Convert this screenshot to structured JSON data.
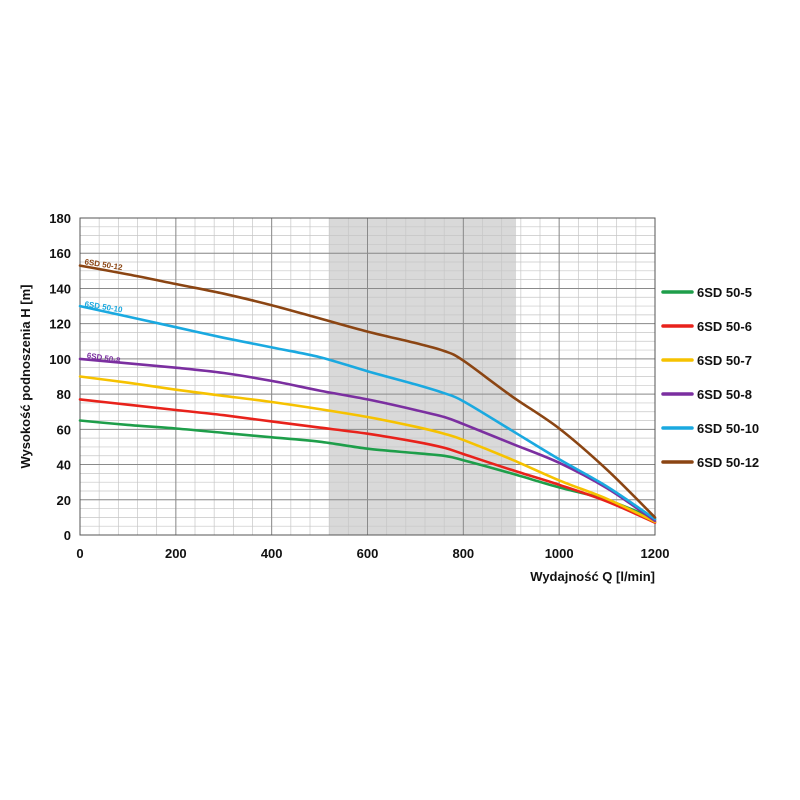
{
  "chart_data": {
    "type": "line",
    "xlabel": "Wydajność Q [l/min]",
    "ylabel": "Wysokość podnoszenia H [m]",
    "xlim": [
      0,
      1200
    ],
    "ylim": [
      0,
      180
    ],
    "x_ticks": [
      0,
      200,
      400,
      600,
      800,
      1000,
      1200
    ],
    "y_ticks": [
      0,
      20,
      40,
      60,
      80,
      100,
      120,
      140,
      160,
      180
    ],
    "grid": true,
    "legend_position": "right",
    "shaded_range": [
      520,
      910
    ],
    "shaded_color": "#d9d9d9",
    "series": [
      {
        "name": "6SD 50-5",
        "color": "#1e9e4a",
        "x": [
          0,
          100,
          200,
          300,
          400,
          500,
          600,
          700,
          760,
          800,
          900,
          1000,
          1100,
          1200
        ],
        "y": [
          65,
          62.5,
          60.5,
          58,
          55.5,
          53,
          49,
          46.5,
          45,
          42.5,
          35,
          27,
          20,
          9
        ]
      },
      {
        "name": "6SD 50-6",
        "color": "#e8221b",
        "x": [
          0,
          100,
          200,
          300,
          400,
          500,
          600,
          700,
          760,
          800,
          900,
          1000,
          1100,
          1200
        ],
        "y": [
          77,
          74,
          71,
          68,
          64.5,
          61,
          57.5,
          53,
          49.5,
          46,
          37,
          28.5,
          19,
          7
        ]
      },
      {
        "name": "6SD 50-7",
        "color": "#f6c200",
        "x": [
          0,
          100,
          200,
          300,
          400,
          500,
          600,
          700,
          760,
          800,
          900,
          1000,
          1100,
          1200
        ],
        "y": [
          90,
          86.5,
          82.5,
          79,
          75.5,
          71.5,
          67,
          61.5,
          57.5,
          54,
          43,
          31,
          20.5,
          7.5
        ]
      },
      {
        "name": "6SD 50-8",
        "color": "#7b2fa0",
        "x": [
          0,
          100,
          200,
          300,
          400,
          500,
          600,
          700,
          760,
          800,
          900,
          1000,
          1100,
          1200
        ],
        "y": [
          100,
          97.5,
          95,
          92,
          87.5,
          82,
          77,
          71,
          67,
          63,
          52,
          41,
          26.5,
          8
        ]
      },
      {
        "name": "6SD 50-10",
        "color": "#1aa9e0",
        "x": [
          0,
          100,
          200,
          300,
          400,
          500,
          600,
          700,
          760,
          800,
          900,
          1000,
          1100,
          1200
        ],
        "y": [
          130,
          124,
          118,
          112,
          106.5,
          101,
          93,
          85.5,
          80.5,
          76,
          59.5,
          43,
          27.5,
          9
        ]
      },
      {
        "name": "6SD 50-12",
        "color": "#8b4513",
        "x": [
          0,
          100,
          200,
          300,
          400,
          500,
          600,
          700,
          760,
          800,
          900,
          1000,
          1100,
          1200
        ],
        "y": [
          153,
          148,
          142.5,
          137,
          130.5,
          123,
          115.5,
          109,
          104.5,
          99,
          79,
          60.5,
          37,
          10
        ]
      }
    ],
    "curve_labels": [
      {
        "text": "6SD 50-12",
        "series": "6SD 50-12",
        "x": 48,
        "y": 151.5
      },
      {
        "text": "6SD 50-10",
        "series": "6SD 50-10",
        "x": 48,
        "y": 127.5
      },
      {
        "text": "6SD 50-8",
        "series": "6SD 50-8",
        "x": 48,
        "y": 98.5
      }
    ]
  }
}
